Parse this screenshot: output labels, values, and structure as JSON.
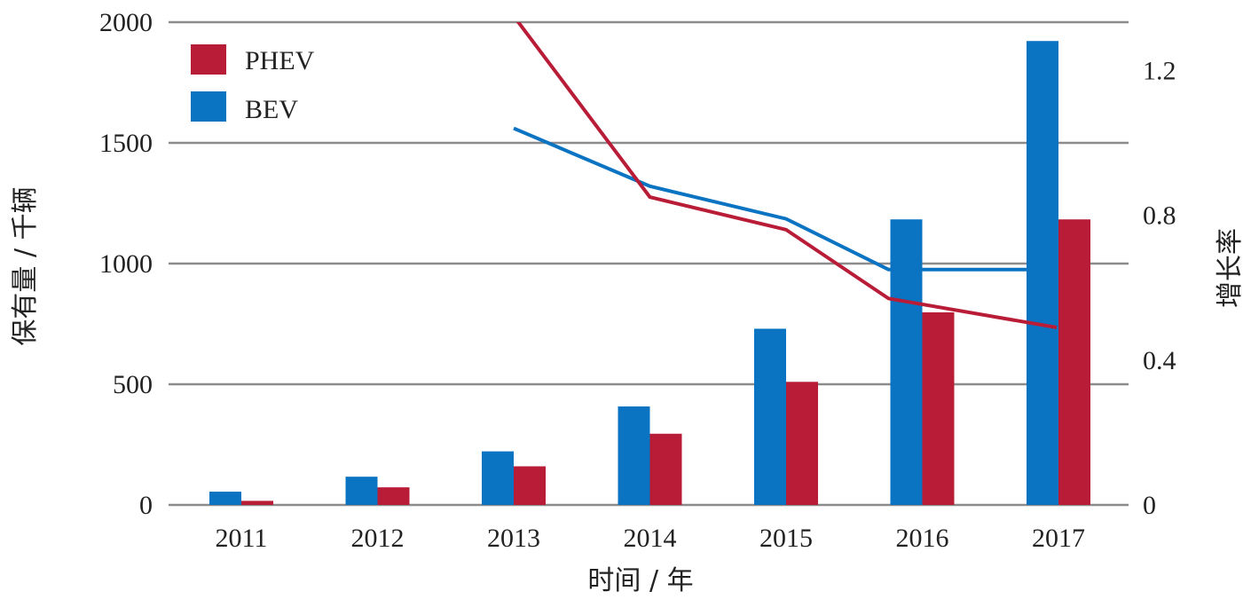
{
  "chart_data": {
    "type": "bar",
    "categories": [
      "2011",
      "2012",
      "2013",
      "2014",
      "2015",
      "2016",
      "2017"
    ],
    "xlabel": "时间 / 年",
    "ylabel": "保有量 / 千辆",
    "y2label": "增长率",
    "ylim": [
      0,
      2000
    ],
    "y2lim": [
      0,
      1.333
    ],
    "yticks": [
      "0",
      "500",
      "1000",
      "1500",
      "2000"
    ],
    "y2ticks": [
      "0",
      "0.4",
      "0.8",
      "1.2"
    ],
    "grid": true,
    "legend": {
      "placement": "top-left",
      "entries": [
        "PHEV",
        "BEV"
      ]
    },
    "colors": {
      "PHEV": "#b81c37",
      "BEV": "#0a73c2"
    },
    "series": [
      {
        "name": "BEV",
        "kind": "bar",
        "axis": "left",
        "values": [
          55,
          117,
          222,
          408,
          730,
          1183,
          1922
        ]
      },
      {
        "name": "PHEV",
        "kind": "bar",
        "axis": "left",
        "values": [
          17,
          73,
          160,
          295,
          510,
          798,
          1183
        ]
      },
      {
        "name": "BEV",
        "kind": "line",
        "axis": "right",
        "values": [
          null,
          null,
          1.04,
          0.88,
          0.79,
          0.65,
          0.65
        ]
      },
      {
        "name": "PHEV",
        "kind": "line",
        "axis": "right",
        "values": [
          null,
          null,
          1.35,
          0.85,
          0.76,
          0.57,
          0.49
        ]
      }
    ]
  }
}
